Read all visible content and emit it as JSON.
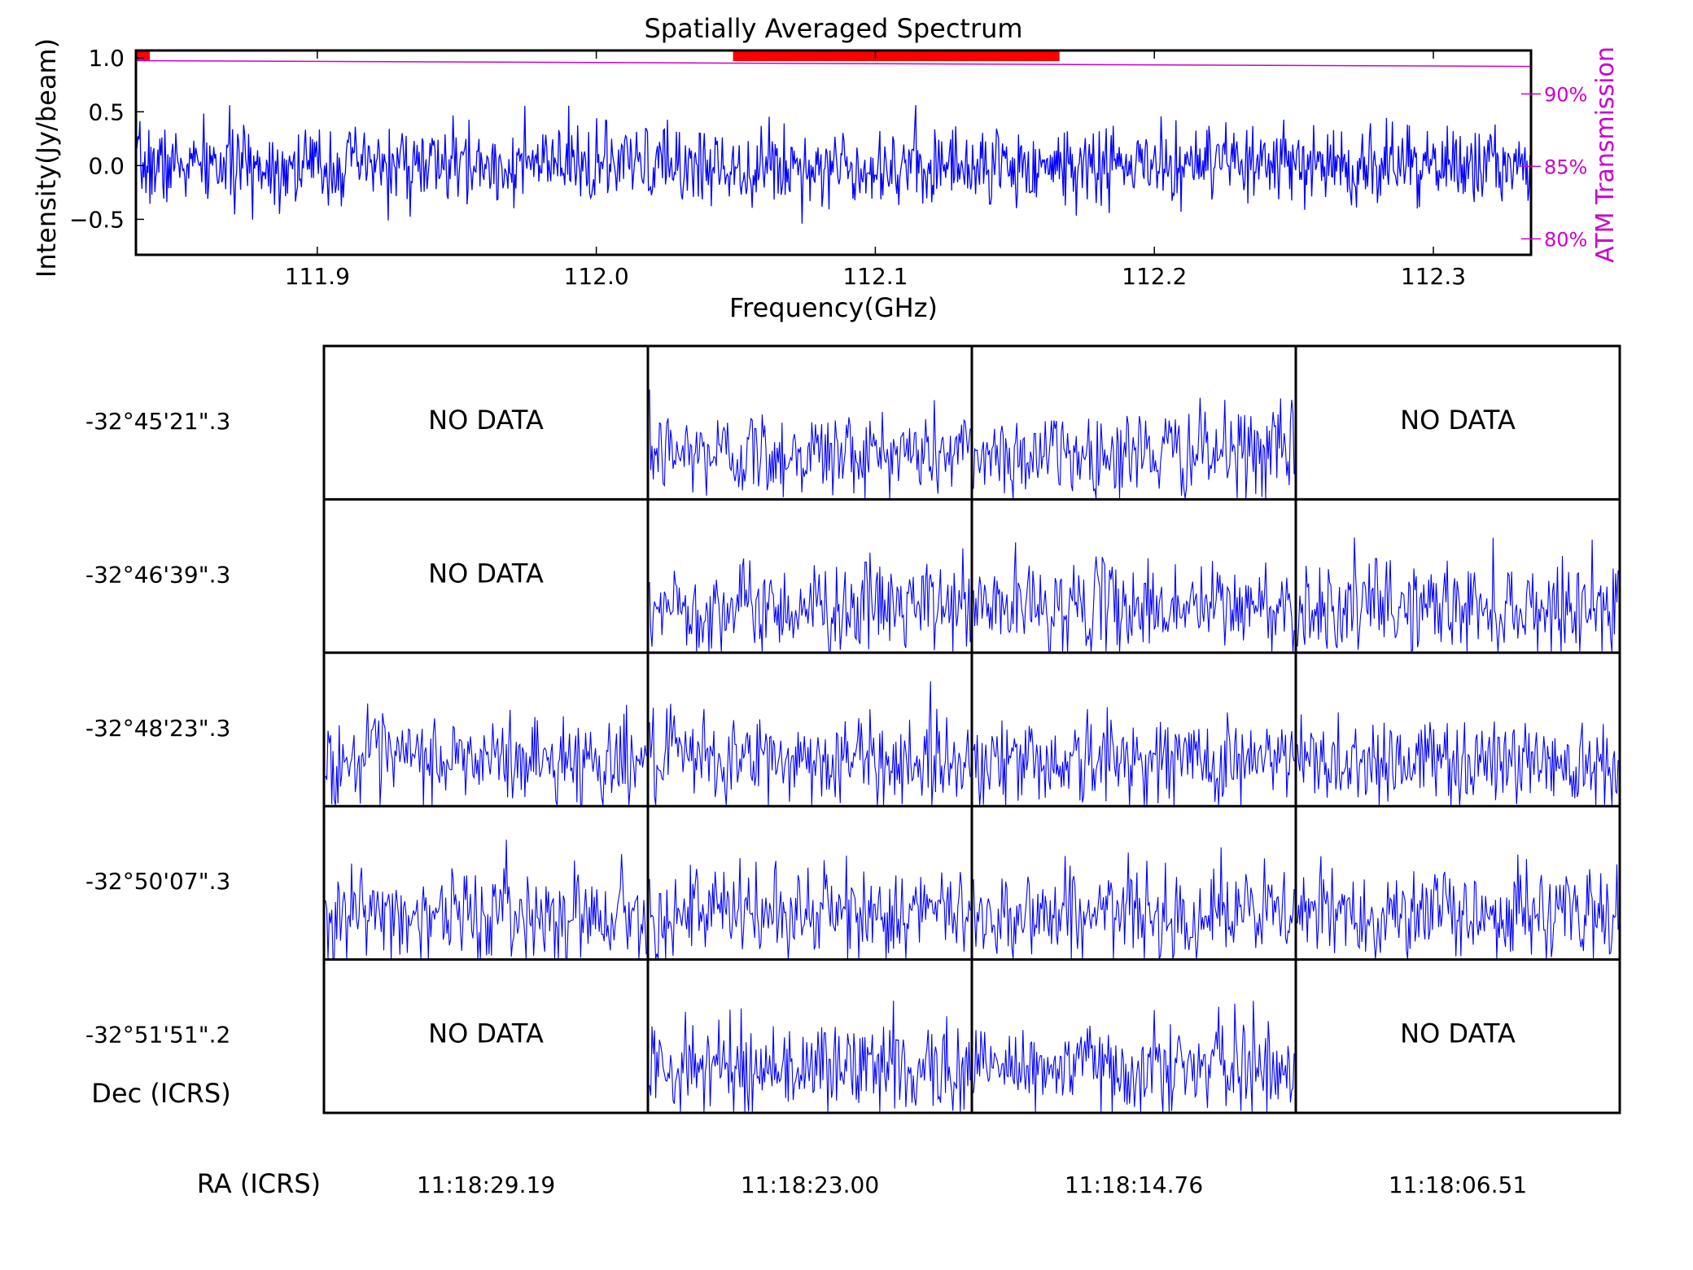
{
  "colors": {
    "spectrum": "#0000ff",
    "atm": "#cc00cc",
    "flag": "#ff0000",
    "axis": "#000000"
  },
  "chart_data": [
    {
      "type": "line",
      "title": "Spatially Averaged Spectrum",
      "xlabel": "Frequency(GHz)",
      "ylabel": "Intensity(Jy/beam)",
      "y2label": "ATM Transmission",
      "xlim": [
        111.835,
        112.335
      ],
      "ylim": [
        -0.83,
        1.07
      ],
      "y2lim": [
        0.789,
        0.93
      ],
      "x_ticks": [
        "111.9",
        "112.0",
        "112.1",
        "112.2",
        "112.3"
      ],
      "x_tick_values": [
        111.9,
        112.0,
        112.1,
        112.2,
        112.3
      ],
      "y_ticks": [
        "1.0",
        "0.5",
        "0.0",
        "−0.5"
      ],
      "y_tick_values": [
        1.0,
        0.5,
        0.0,
        -0.5
      ],
      "y2_ticks": [
        "90%",
        "85%",
        "80%"
      ],
      "y2_tick_values": [
        0.9,
        0.85,
        0.8
      ],
      "series": [
        {
          "kind": "noise",
          "x_start": 111.835,
          "x_end": 112.335,
          "points": 1400,
          "mean": 0.0,
          "std": 0.18,
          "seed": 7
        },
        {
          "kind": "atm",
          "x": [
            111.835,
            112.335
          ],
          "y": [
            0.923,
            0.919
          ]
        }
      ],
      "flagged_ranges": [
        [
          111.835,
          111.84
        ],
        [
          112.049,
          112.166
        ]
      ]
    },
    {
      "type": "grid",
      "xlabel": "RA (ICRS)",
      "ylabel": "Dec (ICRS)",
      "ra_labels": [
        "11:18:29.19",
        "11:18:23.00",
        "11:18:14.76",
        "11:18:06.51"
      ],
      "dec_labels": [
        "-32°45'21\".3",
        "-32°46'39\".3",
        "-32°48'23\".3",
        "-32°50'07\".3",
        "-32°51'51\".2"
      ],
      "no_data_text": "NO DATA",
      "cells": [
        [
          false,
          true,
          true,
          false
        ],
        [
          false,
          true,
          true,
          true
        ],
        [
          true,
          true,
          true,
          true
        ],
        [
          true,
          true,
          true,
          true
        ],
        [
          false,
          true,
          true,
          false
        ]
      ]
    }
  ]
}
